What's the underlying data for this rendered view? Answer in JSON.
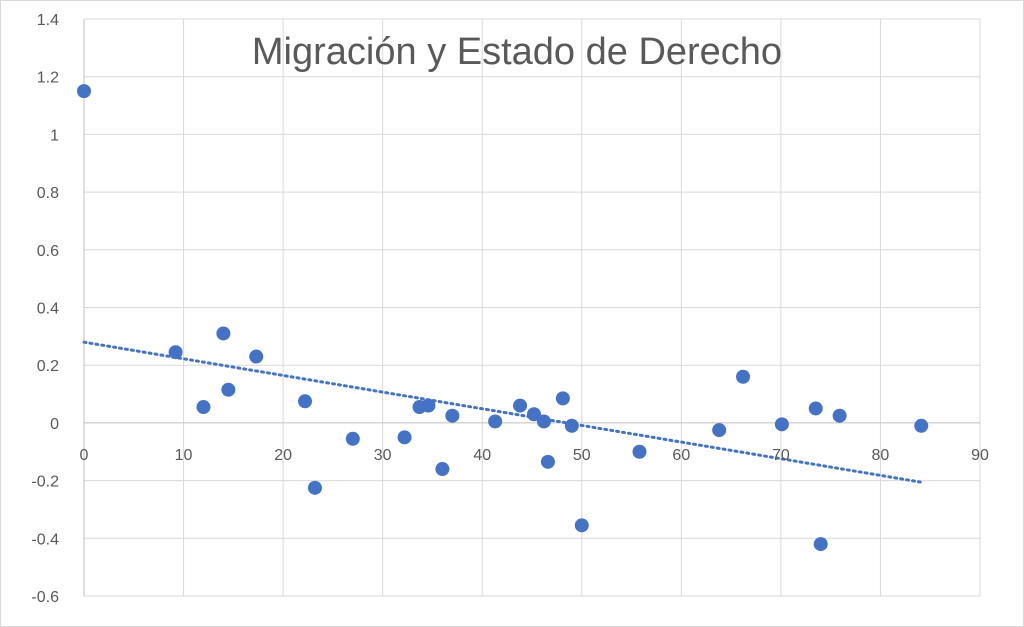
{
  "chart_data": {
    "type": "scatter",
    "title": "Migración y Estado de Derecho",
    "xlabel": "",
    "ylabel": "",
    "xlim": [
      0,
      90
    ],
    "ylim": [
      -0.6,
      1.4
    ],
    "x_ticks": [
      0,
      10,
      20,
      30,
      40,
      50,
      60,
      70,
      80,
      90
    ],
    "y_ticks": [
      -0.6,
      -0.4,
      -0.2,
      0,
      0.2,
      0.4,
      0.6,
      0.8,
      1,
      1.2,
      1.4
    ],
    "x_tick_labels": [
      "0",
      "10",
      "20",
      "30",
      "40",
      "50",
      "60",
      "70",
      "80",
      "90"
    ],
    "y_tick_labels": [
      "-0.6",
      "-0.4",
      "-0.2",
      "0",
      "0.2",
      "0.4",
      "0.6",
      "0.8",
      "1",
      "1.2",
      "1.4"
    ],
    "grid": true,
    "legend": "none",
    "marker_color": "#4472c4",
    "series": [
      {
        "points": [
          [
            0,
            1.15
          ],
          [
            9.2,
            0.245
          ],
          [
            12,
            0.055
          ],
          [
            14,
            0.31
          ],
          [
            14.5,
            0.115
          ],
          [
            17.3,
            0.23
          ],
          [
            22.2,
            0.075
          ],
          [
            23.2,
            -0.225
          ],
          [
            27,
            -0.055
          ],
          [
            32.2,
            -0.05
          ],
          [
            33.7,
            0.055
          ],
          [
            34.6,
            0.06
          ],
          [
            36,
            -0.16
          ],
          [
            37,
            0.025
          ],
          [
            41.3,
            0.005
          ],
          [
            43.8,
            0.06
          ],
          [
            45.2,
            0.03
          ],
          [
            46.2,
            0.005
          ],
          [
            46.6,
            -0.135
          ],
          [
            48.1,
            0.085
          ],
          [
            49,
            -0.01
          ],
          [
            50,
            -0.355
          ],
          [
            55.8,
            -0.1
          ],
          [
            63.8,
            -0.025
          ],
          [
            66.2,
            0.16
          ],
          [
            70.1,
            -0.005
          ],
          [
            73.5,
            0.05
          ],
          [
            74,
            -0.42
          ],
          [
            75.9,
            0.025
          ],
          [
            84.1,
            -0.01
          ]
        ]
      }
    ],
    "trendline": {
      "type": "linear",
      "style": "dotted",
      "x_range": [
        0,
        84
      ],
      "y_at_start": 0.28,
      "y_at_end": -0.205
    }
  }
}
